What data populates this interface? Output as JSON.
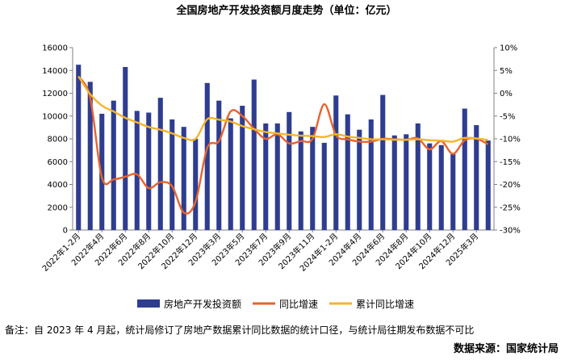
{
  "chart_data": {
    "type": "bar",
    "title": "全国房地产开发投资额月度走势（单位：亿元）",
    "categories": [
      "2022年1-2月",
      "2022年3月",
      "2022年4月",
      "2022年5月",
      "2022年6月",
      "2022年7月",
      "2022年8月",
      "2022年9月",
      "2022年10月",
      "2022年11月",
      "2022年12月",
      "2023年1-2月",
      "2023年3月",
      "2023年4月",
      "2023年5月",
      "2023年6月",
      "2023年7月",
      "2023年8月",
      "2023年9月",
      "2023年10月",
      "2023年11月",
      "2023年12月",
      "2024年1-2月",
      "2024年3月",
      "2024年4月",
      "2024年5月",
      "2024年6月",
      "2024年7月",
      "2024年8月",
      "2024年9月",
      "2024年10月",
      "2024年11月",
      "2024年12月",
      "2025年1-2月",
      "2025年3月",
      "2025年4月"
    ],
    "x_tick_labels": [
      "2022年1-2月",
      "2022年4月",
      "2022年6月",
      "2022年8月",
      "2022年10月",
      "2022年12月",
      "2023年3月",
      "2023年5月",
      "2023年7月",
      "2023年9月",
      "2023年11月",
      "2024年1-2月",
      "2024年4月",
      "2024年6月",
      "2024年8月",
      "2024年10月",
      "2024年12月",
      "2025年3月"
    ],
    "series": [
      {
        "name": "房地产开发投资额",
        "type": "bar",
        "axis": "left",
        "color": "#2e3d8f",
        "values": [
          14500,
          13000,
          10200,
          11350,
          14300,
          10450,
          10300,
          11600,
          9700,
          9050,
          8000,
          12900,
          11350,
          9800,
          10900,
          13200,
          9350,
          9350,
          10350,
          8650,
          9050,
          7650,
          11800,
          10150,
          8800,
          9700,
          11850,
          8300,
          8400,
          9350,
          7600,
          7450,
          6650,
          10650,
          9200,
          7850
        ]
      },
      {
        "name": "同比增速",
        "type": "line",
        "axis": "right",
        "color": "#e8632e",
        "values": [
          3.7,
          -1.0,
          -18.5,
          -18.9,
          -18.3,
          -17.8,
          -20.8,
          -19.5,
          -20.4,
          -26.2,
          -23.8,
          -12.0,
          -10.5,
          -4.0,
          -5.0,
          -7.8,
          -10.0,
          -9.0,
          -11.0,
          -10.5,
          -10.0,
          -2.4,
          -9.2,
          -10.1,
          -10.6,
          -10.6,
          -10.0,
          -10.1,
          -10.2,
          -9.9,
          -12.3,
          -10.5,
          -13.3,
          -10.3,
          -10.0,
          -11.2
        ]
      },
      {
        "name": "累计同比增速",
        "type": "line",
        "axis": "right",
        "color": "#f3b52b",
        "values": [
          3.7,
          -0.2,
          -2.7,
          -4.0,
          -5.4,
          -6.4,
          -7.4,
          -8.0,
          -8.8,
          -9.8,
          -10.0,
          -5.7,
          -5.8,
          -6.2,
          -7.2,
          -7.9,
          -8.5,
          -8.8,
          -9.1,
          -9.3,
          -9.4,
          -9.6,
          -9.0,
          -9.5,
          -9.8,
          -10.1,
          -10.1,
          -10.2,
          -10.2,
          -10.1,
          -10.3,
          -10.4,
          -10.6,
          -9.8,
          -9.9,
          -10.3
        ]
      }
    ],
    "y_left": {
      "min": 0,
      "max": 16000,
      "step": 2000
    },
    "y_right": {
      "min": -30,
      "max": 10,
      "step": 5,
      "unit": "%"
    },
    "legend_placement": "bottom"
  },
  "note": "备注：自 2023 年 4 月起，统计局修订了房地产数据累计同比数据的统计口径，与统计局往期发布数据不可比",
  "source": "数据来源：国家统计局"
}
